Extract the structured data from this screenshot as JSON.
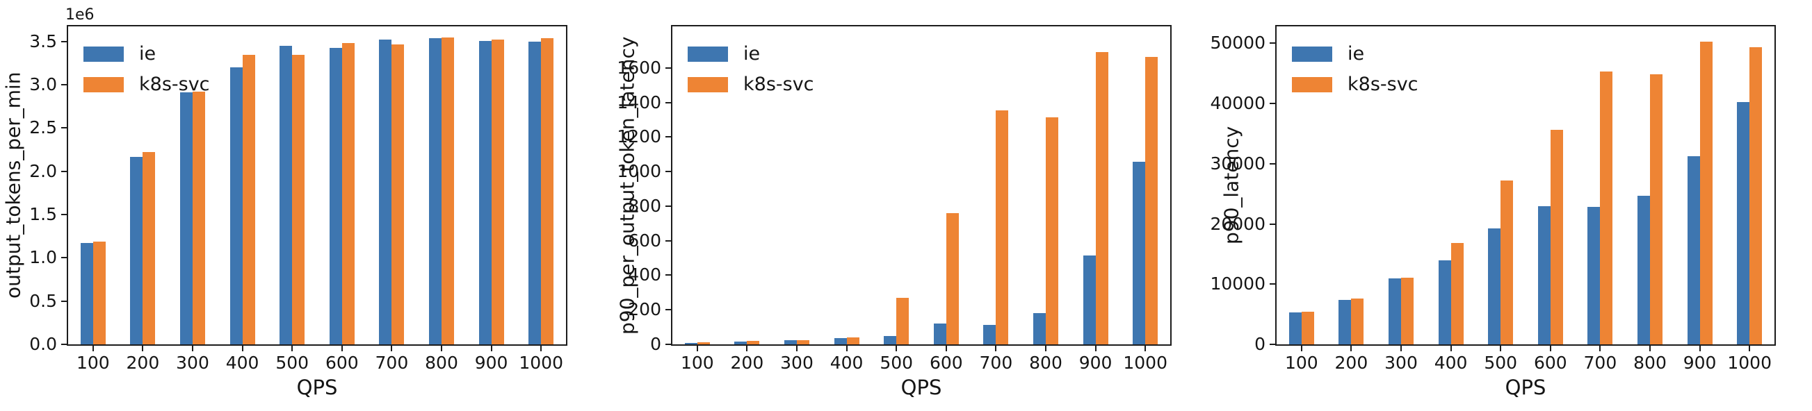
{
  "page": {
    "background": "#ffffff",
    "axis_color": "#1c1c1c",
    "text_color": "#151515"
  },
  "series_colors": {
    "ie": "#3e76b0",
    "k8s-svc": "#ee8434"
  },
  "chart_data": [
    {
      "type": "bar",
      "xlabel": "QPS",
      "ylabel": "output_tokens_per_min",
      "offset_label": "1e6",
      "grid": false,
      "legend_position": "upper left",
      "categories": [
        "100",
        "200",
        "300",
        "400",
        "500",
        "600",
        "700",
        "800",
        "900",
        "1000"
      ],
      "series": [
        {
          "name": "ie",
          "color": "#3e76b0",
          "values": [
            1170000,
            2170000,
            2910000,
            3200000,
            3450000,
            3430000,
            3520000,
            3540000,
            3510000,
            3500000
          ]
        },
        {
          "name": "k8s-svc",
          "color": "#ee8434",
          "values": [
            1190000,
            2220000,
            2920000,
            3350000,
            3350000,
            3480000,
            3470000,
            3550000,
            3520000,
            3540000
          ]
        }
      ],
      "ylim": [
        0,
        3675000
      ],
      "yticks": [
        {
          "value": 0,
          "label": "0.0"
        },
        {
          "value": 500000,
          "label": "0.5"
        },
        {
          "value": 1000000,
          "label": "1.0"
        },
        {
          "value": 1500000,
          "label": "1.5"
        },
        {
          "value": 2000000,
          "label": "2.0"
        },
        {
          "value": 2500000,
          "label": "2.5"
        },
        {
          "value": 3000000,
          "label": "3.0"
        },
        {
          "value": 3500000,
          "label": "3.5"
        }
      ]
    },
    {
      "type": "bar",
      "xlabel": "QPS",
      "ylabel": "p90_per_output_token_latency",
      "offset_label": "",
      "grid": false,
      "legend_position": "upper left",
      "categories": [
        "100",
        "200",
        "300",
        "400",
        "500",
        "600",
        "700",
        "800",
        "900",
        "1000"
      ],
      "series": [
        {
          "name": "ie",
          "color": "#3e76b0",
          "values": [
            10,
            18,
            25,
            35,
            50,
            120,
            112,
            182,
            515,
            1057
          ]
        },
        {
          "name": "k8s-svc",
          "color": "#ee8434",
          "values": [
            11,
            19,
            26,
            40,
            270,
            760,
            1355,
            1315,
            1690,
            1665
          ]
        }
      ],
      "ylim": [
        0,
        1840
      ],
      "yticks": [
        {
          "value": 0,
          "label": "0"
        },
        {
          "value": 200,
          "label": "200"
        },
        {
          "value": 400,
          "label": "400"
        },
        {
          "value": 600,
          "label": "600"
        },
        {
          "value": 800,
          "label": "800"
        },
        {
          "value": 1000,
          "label": "1000"
        },
        {
          "value": 1200,
          "label": "1200"
        },
        {
          "value": 1400,
          "label": "1400"
        },
        {
          "value": 1600,
          "label": "1600"
        }
      ]
    },
    {
      "type": "bar",
      "xlabel": "QPS",
      "ylabel": "p90_latency",
      "offset_label": "",
      "grid": false,
      "legend_position": "upper left",
      "categories": [
        "100",
        "200",
        "300",
        "400",
        "500",
        "600",
        "700",
        "800",
        "900",
        "1000"
      ],
      "series": [
        {
          "name": "ie",
          "color": "#3e76b0",
          "values": [
            5300,
            7400,
            10900,
            13900,
            19200,
            23000,
            22800,
            24700,
            31300,
            40200
          ]
        },
        {
          "name": "k8s-svc",
          "color": "#ee8434",
          "values": [
            5450,
            7600,
            11100,
            16800,
            27200,
            35600,
            45300,
            44800,
            50300,
            49400
          ]
        }
      ],
      "ylim": [
        0,
        52800
      ],
      "yticks": [
        {
          "value": 0,
          "label": "0"
        },
        {
          "value": 10000,
          "label": "10000"
        },
        {
          "value": 20000,
          "label": "20000"
        },
        {
          "value": 30000,
          "label": "30000"
        },
        {
          "value": 40000,
          "label": "40000"
        },
        {
          "value": 50000,
          "label": "50000"
        }
      ]
    }
  ]
}
